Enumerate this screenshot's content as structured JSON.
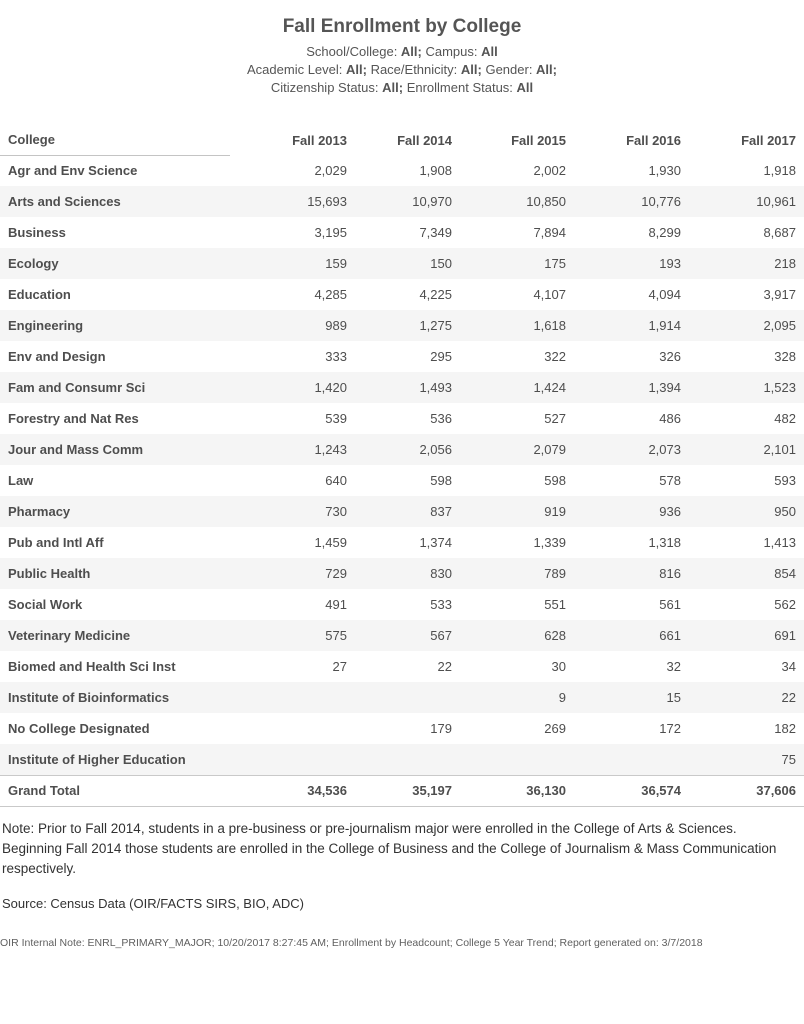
{
  "header": {
    "title": "Fall Enrollment by College",
    "filter_lines": [
      {
        "parts": [
          {
            "t": "School/College: "
          },
          {
            "t": "All;"
          },
          {
            "t": " Campus: "
          },
          {
            "t": "All"
          }
        ]
      },
      {
        "parts": [
          {
            "t": "Academic Level: "
          },
          {
            "t": "All;"
          },
          {
            "t": " Race/Ethnicity: "
          },
          {
            "t": "All;"
          },
          {
            "t": " Gender: "
          },
          {
            "t": "All;"
          }
        ]
      },
      {
        "parts": [
          {
            "t": "Citizenship Status: "
          },
          {
            "t": "All;"
          },
          {
            "t": " Enrollment Status: "
          },
          {
            "t": "All"
          }
        ]
      }
    ]
  },
  "table": {
    "columns": [
      "College",
      "Fall 2013",
      "Fall 2014",
      "Fall 2015",
      "Fall 2016",
      "Fall 2017"
    ],
    "rows": [
      {
        "label": "Agr and Env Science",
        "values": [
          "2,029",
          "1,908",
          "2,002",
          "1,930",
          "1,918"
        ]
      },
      {
        "label": "Arts and Sciences",
        "values": [
          "15,693",
          "10,970",
          "10,850",
          "10,776",
          "10,961"
        ]
      },
      {
        "label": "Business",
        "values": [
          "3,195",
          "7,349",
          "7,894",
          "8,299",
          "8,687"
        ]
      },
      {
        "label": "Ecology",
        "values": [
          "159",
          "150",
          "175",
          "193",
          "218"
        ]
      },
      {
        "label": "Education",
        "values": [
          "4,285",
          "4,225",
          "4,107",
          "4,094",
          "3,917"
        ]
      },
      {
        "label": "Engineering",
        "values": [
          "989",
          "1,275",
          "1,618",
          "1,914",
          "2,095"
        ]
      },
      {
        "label": "Env and Design",
        "values": [
          "333",
          "295",
          "322",
          "326",
          "328"
        ]
      },
      {
        "label": "Fam and Consumr Sci",
        "values": [
          "1,420",
          "1,493",
          "1,424",
          "1,394",
          "1,523"
        ]
      },
      {
        "label": "Forestry and Nat Res",
        "values": [
          "539",
          "536",
          "527",
          "486",
          "482"
        ]
      },
      {
        "label": "Jour and Mass Comm",
        "values": [
          "1,243",
          "2,056",
          "2,079",
          "2,073",
          "2,101"
        ]
      },
      {
        "label": "Law",
        "values": [
          "640",
          "598",
          "598",
          "578",
          "593"
        ]
      },
      {
        "label": "Pharmacy",
        "values": [
          "730",
          "837",
          "919",
          "936",
          "950"
        ]
      },
      {
        "label": "Pub and Intl Aff",
        "values": [
          "1,459",
          "1,374",
          "1,339",
          "1,318",
          "1,413"
        ]
      },
      {
        "label": "Public Health",
        "values": [
          "729",
          "830",
          "789",
          "816",
          "854"
        ]
      },
      {
        "label": "Social Work",
        "values": [
          "491",
          "533",
          "551",
          "561",
          "562"
        ]
      },
      {
        "label": "Veterinary Medicine",
        "values": [
          "575",
          "567",
          "628",
          "661",
          "691"
        ]
      },
      {
        "label": "Biomed and Health Sci Inst",
        "values": [
          "27",
          "22",
          "30",
          "32",
          "34"
        ]
      },
      {
        "label": "Institute of Bioinformatics",
        "values": [
          "",
          "",
          "9",
          "15",
          "22"
        ]
      },
      {
        "label": "No College Designated",
        "values": [
          "",
          "179",
          "269",
          "172",
          "182"
        ]
      },
      {
        "label": "Institute of Higher Education",
        "values": [
          "",
          "",
          "",
          "",
          "75"
        ]
      }
    ],
    "total_row": {
      "label": "Grand Total",
      "values": [
        "34,536",
        "35,197",
        "36,130",
        "36,574",
        "37,606"
      ]
    }
  },
  "footer": {
    "note": "Note: Prior to Fall 2014, students in a pre-business or pre-journalism major were enrolled in the College of Arts & Sciences. Beginning Fall 2014 those students are enrolled in the College of Business and the College of Journalism & Mass Communication respectively.",
    "source": "Source: Census Data (OIR/FACTS SIRS, BIO, ADC)",
    "internal_note": "OIR Internal Note: ENRL_PRIMARY_MAJOR; 10/20/2017 8:27:45 AM; Enrollment by Headcount; College 5 Year Trend; Report generated on: 3/7/2018"
  },
  "colors": {
    "stripe": "#f5f5f5",
    "text": "#4e4e4e",
    "rule": "#c9c9c9"
  }
}
